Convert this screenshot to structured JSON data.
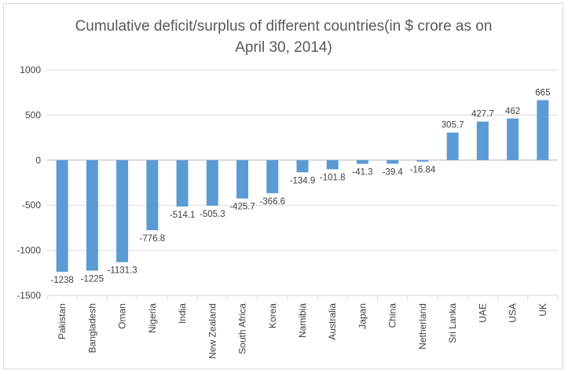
{
  "chart_data": {
    "type": "bar",
    "title": "Cumulative deficit/surplus of different countries(in $ crore as on April 30, 2014)",
    "title_lines": [
      "Cumulative deficit/surplus of different countries(in $ crore as on",
      "April 30, 2014)"
    ],
    "xlabel": "",
    "ylabel": "",
    "ylim": [
      -1500,
      1000
    ],
    "yticks": [
      1000,
      500,
      0,
      -500,
      -1000,
      -1500
    ],
    "ytick_labels": [
      "1000",
      "500",
      "0",
      "-500",
      "-1000",
      "-1500"
    ],
    "grid": true,
    "legend": "none",
    "categories": [
      "Pakistan",
      "Bangladesh",
      "Oman",
      "Nigeria",
      "India",
      "New Zealand",
      "South Africa",
      "Korea",
      "Namibia",
      "Australia",
      "Japan",
      "China",
      "Netherland",
      "Sri Lanka",
      "UAE",
      "USA",
      "UK"
    ],
    "values": [
      -1238,
      -1225,
      -1131.3,
      -776.8,
      -514.1,
      -505.3,
      -425.7,
      -366.6,
      -134.9,
      -101.8,
      -41.3,
      -39.4,
      -16.84,
      305.7,
      427.7,
      462,
      665
    ],
    "value_labels": [
      "-1238",
      "-1225",
      "-1131.3",
      "-776.8",
      "-514.1",
      "-505.3",
      "-425.7",
      "-366.6",
      "-134.9",
      "-101.8",
      "-41.3",
      "-39.4",
      "-16.84",
      "305.7",
      "427.7",
      "462",
      "665"
    ],
    "bar_color": "#5b9bd5",
    "grid_color": "#d9d9d9"
  }
}
